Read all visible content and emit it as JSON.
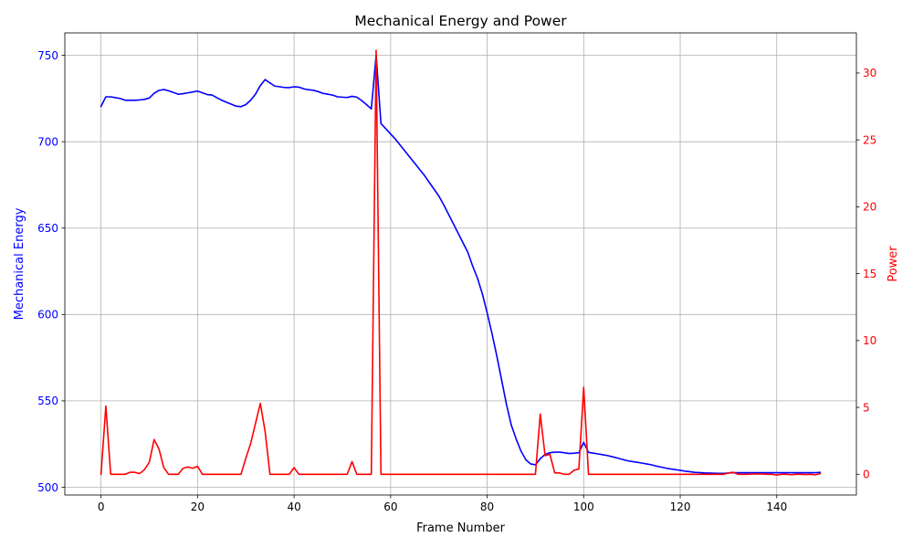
{
  "chart_data": {
    "type": "line",
    "title": "Mechanical Energy and Power",
    "xlabel": "Frame Number",
    "ylabel_left": "Mechanical Energy",
    "ylabel_right": "Power",
    "xlim": [
      -7.5,
      156.5
    ],
    "ylim_left": [
      495.5,
      763
    ],
    "ylim_right": [
      -1.55,
      33
    ],
    "x_ticks": [
      0,
      20,
      40,
      60,
      80,
      100,
      120,
      140
    ],
    "y_left_ticks": [
      500,
      550,
      600,
      650,
      700,
      750
    ],
    "y_right_ticks": [
      0,
      5,
      10,
      15,
      20,
      25,
      30
    ],
    "grid": true,
    "colors": {
      "left": "#0000ff",
      "right": "#ff0000"
    },
    "series": [
      {
        "axis": "left",
        "color": "#0000ff",
        "points": [
          [
            0,
            720.5
          ],
          [
            1,
            726
          ],
          [
            2,
            726
          ],
          [
            3,
            725.5
          ],
          [
            4,
            725
          ],
          [
            5,
            724
          ],
          [
            6,
            724
          ],
          [
            7,
            724
          ],
          [
            8,
            724.2
          ],
          [
            9,
            724.5
          ],
          [
            10,
            725.3
          ],
          [
            11,
            728
          ],
          [
            12,
            729.7
          ],
          [
            13,
            730.2
          ],
          [
            14,
            729.5
          ],
          [
            15,
            728.5
          ],
          [
            16,
            727.5
          ],
          [
            17,
            727.8
          ],
          [
            18,
            728.3
          ],
          [
            19,
            728.8
          ],
          [
            20,
            729.3
          ],
          [
            21,
            728.3
          ],
          [
            22,
            727.3
          ],
          [
            23,
            727
          ],
          [
            24,
            725.5
          ],
          [
            25,
            724
          ],
          [
            26,
            722.8
          ],
          [
            27,
            721.7
          ],
          [
            28,
            720.6
          ],
          [
            29,
            720.3
          ],
          [
            30,
            721.5
          ],
          [
            31,
            724
          ],
          [
            32,
            727.5
          ],
          [
            33,
            732.5
          ],
          [
            34,
            736
          ],
          [
            35,
            734
          ],
          [
            36,
            732.2
          ],
          [
            37,
            731.8
          ],
          [
            38,
            731.4
          ],
          [
            39,
            731.3
          ],
          [
            40,
            731.8
          ],
          [
            41,
            731.6
          ],
          [
            42,
            730.6
          ],
          [
            43,
            730.1
          ],
          [
            44,
            729.8
          ],
          [
            45,
            729
          ],
          [
            46,
            728
          ],
          [
            47,
            727.5
          ],
          [
            48,
            727
          ],
          [
            49,
            726
          ],
          [
            50,
            725.8
          ],
          [
            51,
            725.6
          ],
          [
            52,
            726.3
          ],
          [
            53,
            725.8
          ],
          [
            54,
            723.8
          ],
          [
            55,
            721.5
          ],
          [
            56,
            719
          ],
          [
            57,
            750
          ],
          [
            58,
            710.5
          ],
          [
            59,
            707.5
          ],
          [
            60,
            704.5
          ],
          [
            61,
            701.5
          ],
          [
            62,
            698
          ],
          [
            63,
            694.5
          ],
          [
            64,
            691
          ],
          [
            65,
            687.5
          ],
          [
            66,
            684
          ],
          [
            67,
            680.5
          ],
          [
            68,
            676.5
          ],
          [
            69,
            672.5
          ],
          [
            70,
            668.5
          ],
          [
            71,
            663.5
          ],
          [
            72,
            658
          ],
          [
            73,
            652.5
          ],
          [
            74,
            647
          ],
          [
            75,
            641.5
          ],
          [
            76,
            636
          ],
          [
            77,
            628
          ],
          [
            78,
            621
          ],
          [
            79,
            612
          ],
          [
            80,
            601
          ],
          [
            81,
            589
          ],
          [
            82,
            576
          ],
          [
            83,
            562
          ],
          [
            84,
            548
          ],
          [
            85,
            536
          ],
          [
            86,
            528
          ],
          [
            87,
            521
          ],
          [
            88,
            516
          ],
          [
            89,
            513.5
          ],
          [
            90,
            513
          ],
          [
            91,
            516.5
          ],
          [
            92,
            519
          ],
          [
            93,
            520
          ],
          [
            94,
            520.3
          ],
          [
            95,
            520.3
          ],
          [
            96,
            520
          ],
          [
            97,
            519.5
          ],
          [
            98,
            519.7
          ],
          [
            99,
            520
          ],
          [
            100,
            526
          ],
          [
            101,
            520.2
          ],
          [
            102,
            519.7
          ],
          [
            103,
            519.3
          ],
          [
            104,
            518.8
          ],
          [
            105,
            518.3
          ],
          [
            106,
            517.6
          ],
          [
            107,
            516.9
          ],
          [
            108,
            516.1
          ],
          [
            109,
            515.4
          ],
          [
            110,
            514.9
          ],
          [
            111,
            514.5
          ],
          [
            112,
            514
          ],
          [
            113,
            513.5
          ],
          [
            114,
            513
          ],
          [
            115,
            512.3
          ],
          [
            116,
            511.7
          ],
          [
            117,
            511.1
          ],
          [
            118,
            510.6
          ],
          [
            119,
            510.2
          ],
          [
            120,
            509.8
          ],
          [
            121,
            509.3
          ],
          [
            122,
            509
          ],
          [
            123,
            508.6
          ],
          [
            124,
            508.5
          ],
          [
            125,
            508.3
          ],
          [
            126,
            508.2
          ],
          [
            127,
            508.1
          ],
          [
            128,
            508
          ],
          [
            129,
            508
          ],
          [
            130,
            508.2
          ],
          [
            131,
            508.4
          ],
          [
            132,
            508.4
          ],
          [
            133,
            508.4
          ],
          [
            134,
            508.4
          ],
          [
            135,
            508.4
          ],
          [
            136,
            508.4
          ],
          [
            137,
            508.4
          ],
          [
            138,
            508.4
          ],
          [
            139,
            508.4
          ],
          [
            140,
            508.4
          ],
          [
            141,
            508.4
          ],
          [
            142,
            508.4
          ],
          [
            143,
            508.4
          ],
          [
            144,
            508.4
          ],
          [
            145,
            508.4
          ],
          [
            146,
            508.4
          ],
          [
            147,
            508.4
          ],
          [
            148,
            508.4
          ],
          [
            149,
            508.6
          ]
        ]
      },
      {
        "axis": "right",
        "color": "#ff0000",
        "points": [
          [
            0,
            0
          ],
          [
            1,
            5.1
          ],
          [
            2,
            0
          ],
          [
            3,
            0
          ],
          [
            4,
            0
          ],
          [
            5,
            0
          ],
          [
            6,
            0.15
          ],
          [
            7,
            0.15
          ],
          [
            8,
            0.05
          ],
          [
            9,
            0.35
          ],
          [
            10,
            0.9
          ],
          [
            11,
            2.6
          ],
          [
            12,
            1.9
          ],
          [
            13,
            0.5
          ],
          [
            14,
            0
          ],
          [
            15,
            0
          ],
          [
            16,
            0
          ],
          [
            17,
            0.45
          ],
          [
            18,
            0.55
          ],
          [
            19,
            0.45
          ],
          [
            20,
            0.6
          ],
          [
            21,
            0
          ],
          [
            22,
            0
          ],
          [
            23,
            0
          ],
          [
            24,
            0
          ],
          [
            25,
            0
          ],
          [
            26,
            0
          ],
          [
            27,
            0
          ],
          [
            28,
            0
          ],
          [
            29,
            0
          ],
          [
            30,
            1.2
          ],
          [
            31,
            2.3
          ],
          [
            32,
            3.8
          ],
          [
            33,
            5.3
          ],
          [
            34,
            3.2
          ],
          [
            35,
            0
          ],
          [
            36,
            0
          ],
          [
            37,
            0
          ],
          [
            38,
            0
          ],
          [
            39,
            0
          ],
          [
            40,
            0.5
          ],
          [
            41,
            0
          ],
          [
            42,
            0
          ],
          [
            43,
            0
          ],
          [
            44,
            0
          ],
          [
            45,
            0
          ],
          [
            46,
            0
          ],
          [
            47,
            0
          ],
          [
            48,
            0
          ],
          [
            49,
            0
          ],
          [
            50,
            0
          ],
          [
            51,
            0
          ],
          [
            52,
            0.95
          ],
          [
            53,
            0
          ],
          [
            54,
            0
          ],
          [
            55,
            0
          ],
          [
            56,
            0
          ],
          [
            57,
            31.7
          ],
          [
            58,
            0
          ],
          [
            59,
            0
          ],
          [
            60,
            0
          ],
          [
            61,
            0
          ],
          [
            62,
            0
          ],
          [
            63,
            0
          ],
          [
            64,
            0
          ],
          [
            65,
            0
          ],
          [
            66,
            0
          ],
          [
            67,
            0
          ],
          [
            68,
            0
          ],
          [
            69,
            0
          ],
          [
            70,
            0
          ],
          [
            71,
            0
          ],
          [
            72,
            0
          ],
          [
            73,
            0
          ],
          [
            74,
            0
          ],
          [
            75,
            0
          ],
          [
            76,
            0
          ],
          [
            77,
            0
          ],
          [
            78,
            0
          ],
          [
            79,
            0
          ],
          [
            80,
            0
          ],
          [
            81,
            0
          ],
          [
            82,
            0
          ],
          [
            83,
            0
          ],
          [
            84,
            0
          ],
          [
            85,
            0
          ],
          [
            86,
            0
          ],
          [
            87,
            0
          ],
          [
            88,
            0
          ],
          [
            89,
            0
          ],
          [
            90,
            0
          ],
          [
            91,
            4.5
          ],
          [
            92,
            1.4
          ],
          [
            93,
            1.5
          ],
          [
            94,
            0.1
          ],
          [
            95,
            0.1
          ],
          [
            96,
            0
          ],
          [
            97,
            0
          ],
          [
            98,
            0.3
          ],
          [
            99,
            0.4
          ],
          [
            100,
            6.5
          ],
          [
            101,
            0
          ],
          [
            102,
            0
          ],
          [
            103,
            0
          ],
          [
            104,
            0
          ],
          [
            105,
            0
          ],
          [
            106,
            0
          ],
          [
            107,
            0
          ],
          [
            108,
            0
          ],
          [
            109,
            0
          ],
          [
            110,
            0
          ],
          [
            111,
            0
          ],
          [
            112,
            0
          ],
          [
            113,
            0
          ],
          [
            114,
            0
          ],
          [
            115,
            0
          ],
          [
            116,
            0
          ],
          [
            117,
            0
          ],
          [
            118,
            0
          ],
          [
            119,
            0
          ],
          [
            120,
            0
          ],
          [
            121,
            0
          ],
          [
            122,
            0
          ],
          [
            123,
            0
          ],
          [
            124,
            0
          ],
          [
            125,
            0
          ],
          [
            126,
            0
          ],
          [
            127,
            0
          ],
          [
            128,
            0
          ],
          [
            129,
            0
          ],
          [
            130,
            0.1
          ],
          [
            131,
            0.15
          ],
          [
            132,
            0
          ],
          [
            133,
            0
          ],
          [
            134,
            0
          ],
          [
            135,
            0.02
          ],
          [
            136,
            0.03
          ],
          [
            137,
            0.02
          ],
          [
            138,
            0
          ],
          [
            139,
            0
          ],
          [
            140,
            -0.05
          ],
          [
            141,
            0
          ],
          [
            142,
            0
          ],
          [
            143,
            -0.03
          ],
          [
            144,
            0
          ],
          [
            145,
            0
          ],
          [
            146,
            -0.02
          ],
          [
            147,
            0
          ],
          [
            148,
            -0.04
          ],
          [
            149,
            0.05
          ]
        ]
      }
    ]
  }
}
